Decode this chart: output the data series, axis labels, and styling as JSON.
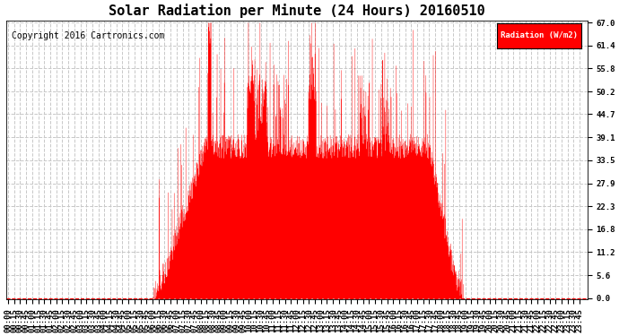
{
  "title": "Solar Radiation per Minute (24 Hours) 20160510",
  "copyright_text": "Copyright 2016 Cartronics.com",
  "legend_label": "Radiation (W/m2)",
  "yticks": [
    0.0,
    5.6,
    11.2,
    16.8,
    22.3,
    27.9,
    33.5,
    39.1,
    44.7,
    50.2,
    55.8,
    61.4,
    67.0
  ],
  "ymax": 67.0,
  "ymin": 0.0,
  "bar_color": "#FF0000",
  "background_color": "#FFFFFF",
  "grid_color": "#C8C8C8",
  "legend_bg": "#FF0000",
  "legend_text_color": "#FFFFFF",
  "title_fontsize": 11,
  "copyright_fontsize": 7,
  "tick_fontsize": 6.5
}
